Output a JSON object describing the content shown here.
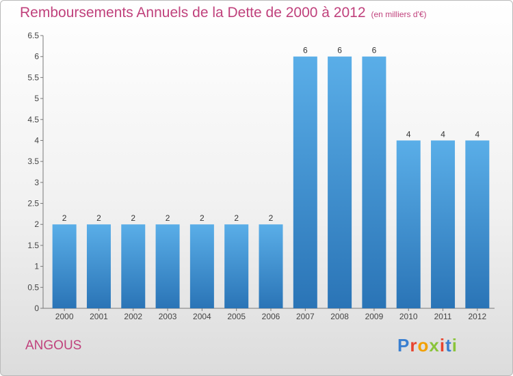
{
  "chart_data": {
    "type": "bar",
    "title": "Remboursements Annuels de la Dette de 2000 à 2012",
    "unit": "(en milliers d'€)",
    "categories": [
      "2000",
      "2001",
      "2002",
      "2003",
      "2004",
      "2005",
      "2006",
      "2007",
      "2008",
      "2009",
      "2010",
      "2011",
      "2012"
    ],
    "values": [
      2,
      2,
      2,
      2,
      2,
      2,
      2,
      6,
      6,
      6,
      4,
      4,
      4
    ],
    "data_labels": [
      "2",
      "2",
      "2",
      "2",
      "2",
      "2",
      "2",
      "6",
      "6",
      "6",
      "4",
      "4",
      "4"
    ],
    "y_ticks": [
      "0",
      "0.5",
      "1",
      "1.5",
      "2",
      "2.5",
      "3",
      "3.5",
      "4",
      "4.5",
      "5",
      "5.5",
      "6",
      "6.5"
    ],
    "ylim": [
      0,
      6.5
    ],
    "grid": false,
    "colors": {
      "bar": "#4f9fdd",
      "bar_dark": "#2e78bb",
      "label": "#333333"
    }
  },
  "commune": "ANGOUS",
  "logo": {
    "letters": [
      "P",
      "r",
      "o",
      "x",
      "i",
      "t",
      "i"
    ]
  }
}
